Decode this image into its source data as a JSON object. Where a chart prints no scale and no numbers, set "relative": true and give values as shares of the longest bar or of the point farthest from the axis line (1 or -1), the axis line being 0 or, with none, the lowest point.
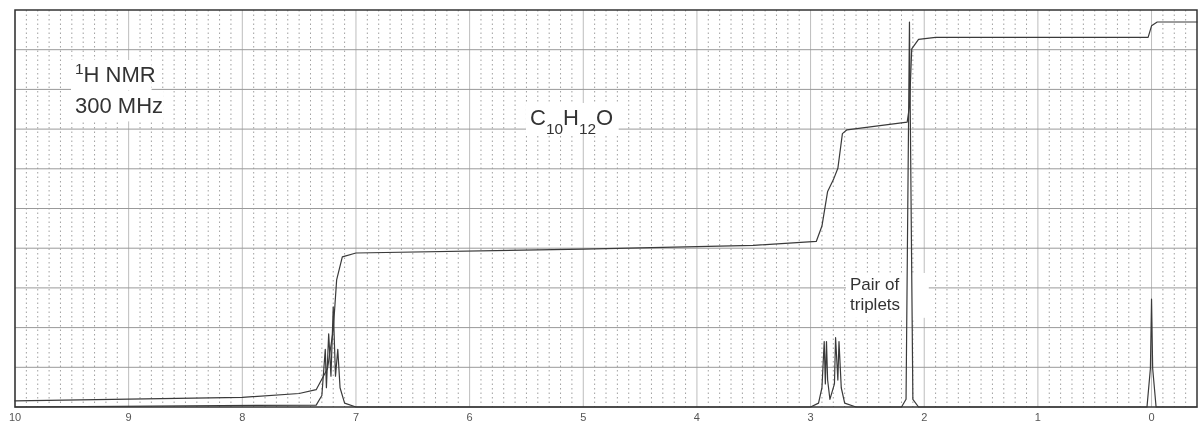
{
  "chart_data": {
    "type": "line",
    "relative": true,
    "xlim": [
      10,
      -0.4
    ],
    "xticks": [
      10,
      9,
      8,
      7,
      6,
      5,
      4,
      3,
      2,
      1,
      0
    ],
    "grid": true,
    "tick_labels": "x",
    "marker": "none",
    "line_style": "solid",
    "annotations": [
      "$^{1}$H NMR",
      "300 MHz",
      "C$_{10}$H$_{12}$O",
      "Pair of triplets"
    ],
    "series": [
      {
        "color": "#3a3a3a",
        "x": [
          10,
          7.35,
          7.3,
          7.27,
          7.26,
          7.24,
          7.22,
          7.2,
          7.18,
          7.16,
          7.14,
          7.1,
          7.0,
          3.0,
          2.93,
          2.9,
          2.88,
          2.87,
          2.86,
          2.85,
          2.83,
          2.79,
          2.78,
          2.76,
          2.75,
          2.73,
          2.7,
          2.6,
          2.2,
          2.16,
          2.13,
          2.1,
          2.05,
          0.04,
          0.01,
          0,
          -0.01,
          -0.04,
          -0.4
        ],
        "values": [
          0,
          0.005,
          0.03,
          0.15,
          0.05,
          0.19,
          0.08,
          0.26,
          0.08,
          0.15,
          0.05,
          0.01,
          0,
          0,
          0.01,
          0.05,
          0.17,
          0.06,
          0.17,
          0.07,
          0.02,
          0.06,
          0.18,
          0.07,
          0.17,
          0.05,
          0.01,
          0,
          0,
          0.02,
          1.0,
          0.02,
          0,
          0,
          0.1,
          0.28,
          0.1,
          0,
          0
        ]
      },
      {
        "color": "#3a3a3a",
        "x": [
          10,
          8,
          7.5,
          7.35,
          7.25,
          7.2,
          7.17,
          7.12,
          7.0,
          5.0,
          3.5,
          2.95,
          2.9,
          2.85,
          2.8,
          2.76,
          2.72,
          2.68,
          2.15,
          2.13,
          2.11,
          2.05,
          1.9,
          0.03,
          0,
          -0.05,
          -0.4
        ],
        "values": [
          0.016,
          0.025,
          0.035,
          0.045,
          0.1,
          0.2,
          0.33,
          0.39,
          0.4,
          0.41,
          0.42,
          0.43,
          0.47,
          0.56,
          0.59,
          0.62,
          0.71,
          0.72,
          0.74,
          0.78,
          0.93,
          0.955,
          0.96,
          0.96,
          0.99,
          1.0,
          1.0
        ]
      }
    ]
  }
}
